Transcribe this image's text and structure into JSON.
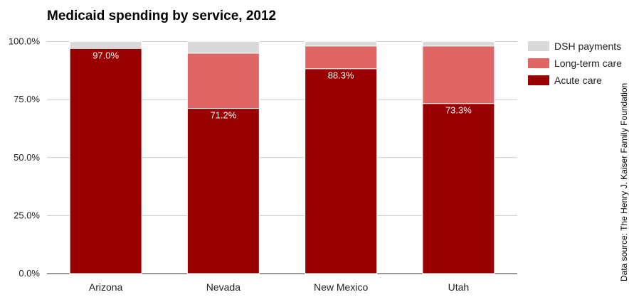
{
  "chart_data": {
    "type": "bar",
    "stacked": true,
    "title": "Medicaid spending by service, 2012",
    "categories": [
      "Arizona",
      "Nevada",
      "New Mexico",
      "Utah"
    ],
    "series": [
      {
        "name": "Acute care",
        "color": "#990000",
        "values": [
          97.0,
          71.2,
          88.3,
          73.3
        ],
        "labels": [
          "97.0%",
          "71.2%",
          "88.3%",
          "73.3%"
        ]
      },
      {
        "name": "Long-term care",
        "color": "#e06666",
        "values": [
          0.6,
          23.8,
          9.8,
          24.8
        ]
      },
      {
        "name": "DSH payments",
        "color": "#d9d9d9",
        "values": [
          2.4,
          5.0,
          1.9,
          1.9
        ]
      }
    ],
    "ylim": [
      0,
      100
    ],
    "yticks": [
      "0.0%",
      "25.0%",
      "50.0%",
      "75.0%",
      "100.0%"
    ],
    "grid": true,
    "legend": "right",
    "legend_order": [
      "DSH payments",
      "Long-term care",
      "Acute care"
    ],
    "source": "Data source: The Henry J. Kaiser Family Foundation"
  }
}
